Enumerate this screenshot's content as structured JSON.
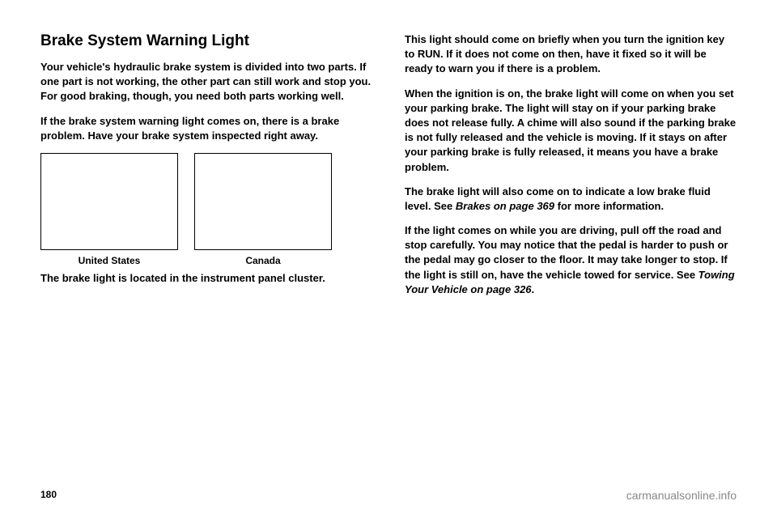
{
  "heading": "Brake System Warning Light",
  "left": {
    "p1": "Your vehicle's hydraulic brake system is divided into two parts. If one part is not working, the other part can still work and stop you. For good braking, though, you need both parts working well.",
    "p2": "If the brake system warning light comes on, there is a brake problem. Have your brake system inspected right away.",
    "figure_us": "United States",
    "figure_ca": "Canada",
    "p3": "The brake light is located in the instrument panel cluster."
  },
  "right": {
    "p1": "This light should come on briefly when you turn the ignition key to RUN. If it does not come on then, have it fixed so it will be ready to warn you if there is a problem.",
    "p2": "When the ignition is on, the brake light will come on when you set your parking brake. The light will stay on if your parking brake does not release fully. A chime will also sound if the parking brake is not fully released and the vehicle is moving. If it stays on after your parking brake is fully released, it means you have a brake problem.",
    "p3a": "The brake light will also come on to indicate a low brake fluid level. See ",
    "p3b": "Brakes on page 369",
    "p3c": " for more information.",
    "p4a": "If the light comes on while you are driving, pull off the road and stop carefully. You may notice that the pedal is harder to push or the pedal may go closer to the floor. It may take longer to stop. If the light is still on, have the vehicle towed for service. See ",
    "p4b": "Towing Your Vehicle on page 326",
    "p4c": "."
  },
  "footer": {
    "page": "180",
    "watermark": "carmanualsonline.info"
  }
}
